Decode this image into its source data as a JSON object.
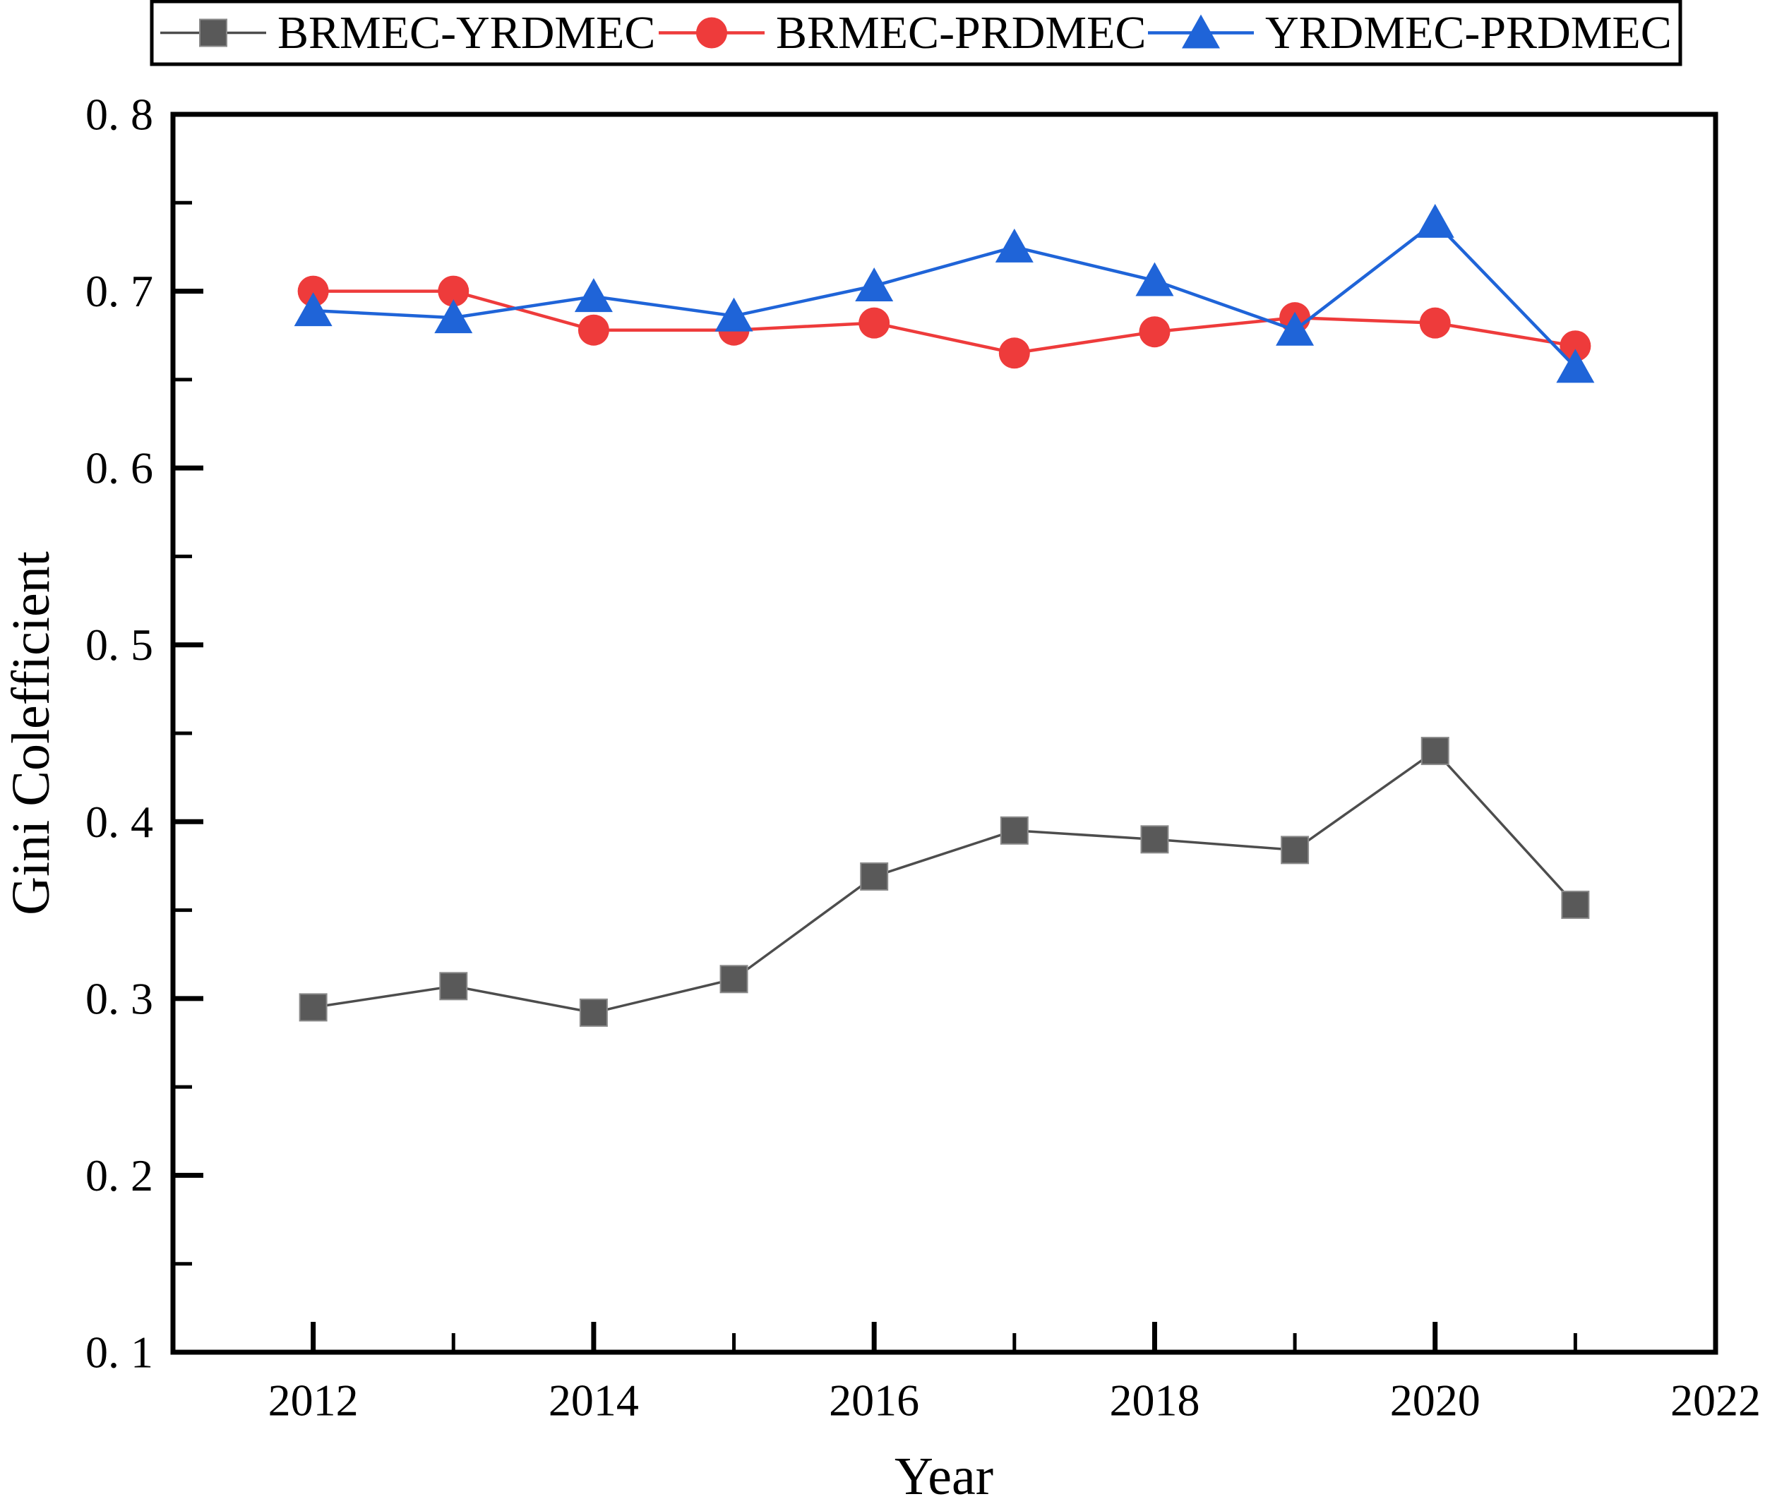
{
  "chart_data": {
    "type": "line",
    "title": "",
    "xlabel": "Year",
    "ylabel": "Gini Colefficient",
    "xlim": [
      2011,
      2022
    ],
    "ylim": [
      0.1,
      0.8
    ],
    "grid": false,
    "x": [
      2012,
      2013,
      2014,
      2015,
      2016,
      2017,
      2018,
      2019,
      2020,
      2021
    ],
    "x_major_ticks": [
      2012,
      2014,
      2016,
      2018,
      2020,
      2022
    ],
    "x_tick_labels": [
      "2012",
      "2014",
      "2016",
      "2018",
      "2020",
      "2022"
    ],
    "x_minor_ticks": [
      2013,
      2015,
      2017,
      2019,
      2021
    ],
    "y_major_ticks": [
      0.1,
      0.2,
      0.3,
      0.4,
      0.5,
      0.6,
      0.7,
      0.8
    ],
    "y_tick_labels": [
      "0. 1",
      "0. 2",
      "0. 3",
      "0. 4",
      "0. 5",
      "0. 6",
      "0. 7",
      "0. 8"
    ],
    "y_minor_ticks": [
      0.15,
      0.25,
      0.35,
      0.45,
      0.55,
      0.65,
      0.75
    ],
    "legend": {
      "position": "top",
      "border_color": "#000000",
      "background": "#ffffff",
      "entries": [
        "BRMEC-YRDMEC",
        "BRMEC-PRDMEC",
        "YRDMEC-PRDMEC"
      ]
    },
    "series": [
      {
        "name": "BRMEC-YRDMEC",
        "marker": "square",
        "marker_color": "#595959",
        "marker_edge_color": "#8a8a8a",
        "line_color": "#4d4d4d",
        "values": [
          0.295,
          0.307,
          0.292,
          0.311,
          0.369,
          0.395,
          0.39,
          0.384,
          0.44,
          0.353
        ]
      },
      {
        "name": "BRMEC-PRDMEC",
        "marker": "circle",
        "marker_color": "#ee3b3b",
        "marker_edge_color": "#ee3b3b",
        "line_color": "#ee3b3b",
        "values": [
          0.7,
          0.7,
          0.678,
          0.678,
          0.682,
          0.665,
          0.677,
          0.685,
          0.682,
          0.669
        ]
      },
      {
        "name": "YRDMEC-PRDMEC",
        "marker": "triangle",
        "marker_color": "#1f64d8",
        "marker_edge_color": "#1f64d8",
        "line_color": "#1f64d8",
        "values": [
          0.689,
          0.685,
          0.697,
          0.686,
          0.703,
          0.725,
          0.706,
          0.678,
          0.739,
          0.657
        ]
      }
    ],
    "frame_color": "#000000"
  }
}
